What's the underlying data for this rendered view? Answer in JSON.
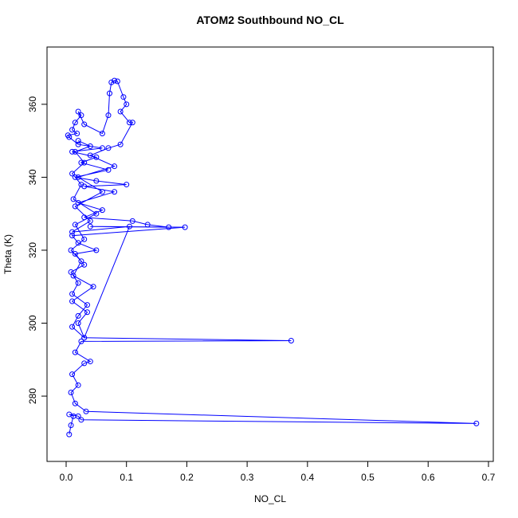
{
  "chart_data": {
    "type": "scatter",
    "lines": true,
    "marker": "open-circle",
    "color": "#0000ff",
    "title": "ATOM2 Southbound NO_CL",
    "x_label": "NO_CL",
    "y_label": "Theta (K)",
    "xlim": [
      -0.0317,
      0.708
    ],
    "ylim": [
      262.1,
      375.7
    ],
    "xticks": [
      {
        "value": 0,
        "label": "0.0"
      },
      0.1,
      0.2,
      0.3,
      0.4,
      0.5,
      0.6,
      0.7
    ],
    "yticks": [
      280,
      300,
      320,
      340,
      360
    ],
    "x": [
      0.005,
      0.008,
      0.012,
      0.005,
      0.02,
      0.025,
      0.68,
      0.033,
      0.015,
      0.008,
      0.02,
      0.01,
      0.03,
      0.04,
      0.015,
      0.025,
      0.373,
      0.03,
      0.01,
      0.02,
      0.035,
      0.01,
      0.02,
      0.008,
      0.03,
      0.015,
      0.05,
      0.02,
      0.01,
      0.197,
      0.04,
      0.17,
      0.135,
      0.11,
      0.03,
      0.06,
      0.02,
      0.08,
      0.03,
      0.1,
      0.05,
      0.015,
      0.07,
      0.025,
      0.05,
      0.01,
      0.06,
      0.02,
      0.005,
      0.003,
      0.018,
      0.01,
      0.015,
      0.025,
      0.02,
      0.03,
      0.06,
      0.07,
      0.072,
      0.075,
      0.08,
      0.085,
      0.095,
      0.1,
      0.09,
      0.105,
      0.11,
      0.09,
      0.07,
      0.04,
      0.08,
      0.02,
      0.06,
      0.015,
      0.04,
      0.01,
      0.105,
      0.03,
      0.02,
      0.035,
      0.01,
      0.045,
      0.012,
      0.025,
      0.008,
      0.03,
      0.015,
      0.05,
      0.012,
      0.025,
      0.01,
      0.03,
      0.015,
      0.04,
      0.02
    ],
    "y": [
      269.5,
      272,
      274.5,
      275,
      274.5,
      273.5,
      272.5,
      275.8,
      278,
      281,
      283,
      286,
      289,
      289.5,
      292,
      295,
      295.2,
      296,
      299,
      302,
      305,
      308,
      311,
      314,
      316,
      319,
      320,
      322,
      324,
      326.3,
      326.5,
      326.3,
      327,
      328,
      329,
      331,
      333,
      336,
      337.5,
      338,
      339,
      340,
      342,
      344,
      345.5,
      347,
      348,
      349,
      351,
      351.5,
      352,
      353,
      355,
      357,
      358,
      354.5,
      352,
      357,
      363,
      366,
      366.5,
      366.3,
      362,
      360,
      358,
      355,
      355,
      349,
      348,
      346,
      343,
      340,
      336,
      332,
      328,
      325,
      326.5,
      296,
      300,
      303,
      306,
      310,
      313,
      317,
      320,
      323,
      327,
      330,
      334,
      338,
      341,
      344,
      347,
      348.5,
      350
    ]
  }
}
